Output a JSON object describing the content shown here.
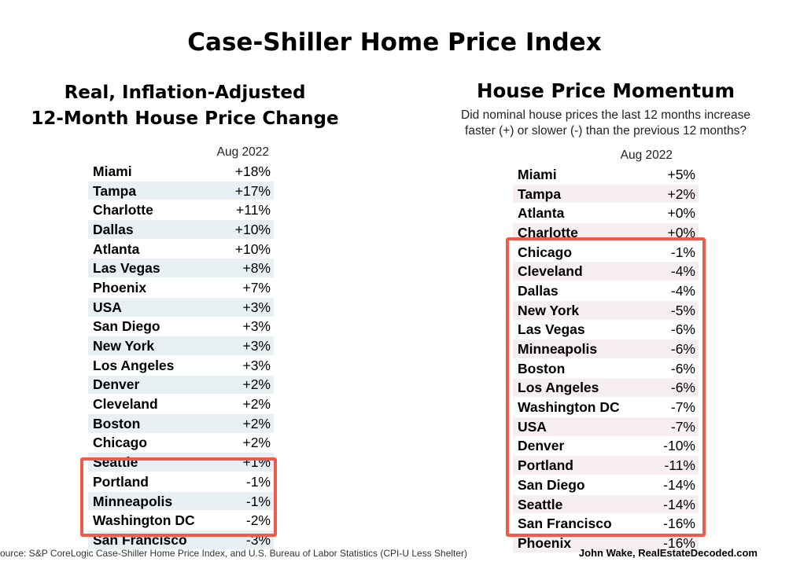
{
  "title": "Case-Shiller Home Price Index",
  "left_panel": {
    "title_line1": "Real, Inflation-Adjusted",
    "title_line2": "12-Month House Price Change",
    "column_header": "Aug 2022"
  },
  "right_panel": {
    "title": "House Price Momentum",
    "subtitle_line1": "Did nominal house prices the last 12 months increase",
    "subtitle_line2": "faster (+) or slower (-) than the previous 12 months?",
    "column_header": "Aug 2022"
  },
  "chart_data": [
    {
      "type": "table",
      "title": "Real, Inflation-Adjusted 12-Month House Price Change",
      "columns": [
        "",
        "Aug 2022"
      ],
      "rows": [
        {
          "city": "Miami",
          "value": "+18%"
        },
        {
          "city": "Tampa",
          "value": "+17%"
        },
        {
          "city": "Charlotte",
          "value": "+11%"
        },
        {
          "city": "Dallas",
          "value": "+10%"
        },
        {
          "city": "Atlanta",
          "value": "+10%"
        },
        {
          "city": "Las Vegas",
          "value": "+8%"
        },
        {
          "city": "Phoenix",
          "value": "+7%"
        },
        {
          "city": "USA",
          "value": "+3%"
        },
        {
          "city": "San Diego",
          "value": "+3%"
        },
        {
          "city": "New York",
          "value": "+3%"
        },
        {
          "city": "Los Angeles",
          "value": "+3%"
        },
        {
          "city": "Denver",
          "value": "+2%"
        },
        {
          "city": "Cleveland",
          "value": "+2%"
        },
        {
          "city": "Boston",
          "value": "+2%"
        },
        {
          "city": "Chicago",
          "value": "+2%"
        },
        {
          "city": "Seattle",
          "value": "+1%"
        },
        {
          "city": "Portland",
          "value": "-1%"
        },
        {
          "city": "Minneapolis",
          "value": "-1%"
        },
        {
          "city": "Washington DC",
          "value": "-2%"
        },
        {
          "city": "San Francisco",
          "value": "-3%"
        }
      ]
    },
    {
      "type": "table",
      "title": "House Price Momentum",
      "columns": [
        "",
        "Aug 2022"
      ],
      "rows": [
        {
          "city": "Miami",
          "value": "+5%"
        },
        {
          "city": "Tampa",
          "value": "+2%"
        },
        {
          "city": "Atlanta",
          "value": "+0%"
        },
        {
          "city": "Charlotte",
          "value": "+0%"
        },
        {
          "city": "Chicago",
          "value": "-1%"
        },
        {
          "city": "Cleveland",
          "value": "-4%"
        },
        {
          "city": "Dallas",
          "value": "-4%"
        },
        {
          "city": "New York",
          "value": "-5%"
        },
        {
          "city": "Las Vegas",
          "value": "-6%"
        },
        {
          "city": "Minneapolis",
          "value": "-6%"
        },
        {
          "city": "Boston",
          "value": "-6%"
        },
        {
          "city": "Los Angeles",
          "value": "-6%"
        },
        {
          "city": "Washington DC",
          "value": "-7%"
        },
        {
          "city": "USA",
          "value": "-7%"
        },
        {
          "city": "Denver",
          "value": "-10%"
        },
        {
          "city": "Portland",
          "value": "-11%"
        },
        {
          "city": "San Diego",
          "value": "-14%"
        },
        {
          "city": "Seattle",
          "value": "-14%"
        },
        {
          "city": "San Francisco",
          "value": "-16%"
        },
        {
          "city": "Phoenix",
          "value": "-16%"
        }
      ]
    }
  ],
  "colors": {
    "highlight_border": "#f05a4a",
    "left_stripe": "#e8f0f4",
    "right_stripe": "#f7eef2"
  },
  "footer": {
    "source": "ource: S&P CoreLogic Case-Shiller Home Price Index, and U.S. Bureau of Labor Statistics (CPI-U Less Shelter)",
    "credit": "John Wake, RealEstateDecoded.com"
  }
}
